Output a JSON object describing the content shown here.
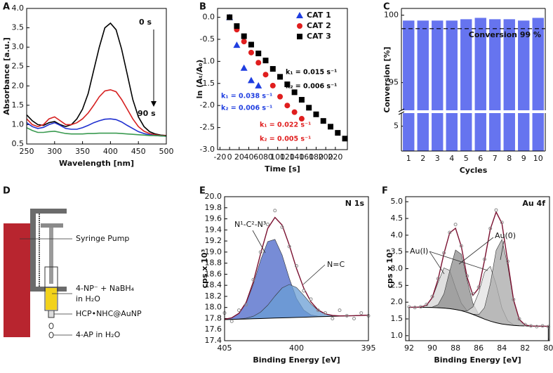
{
  "chart_data": [
    {
      "type": "line",
      "panel_label": "A",
      "xlabel": "Wavelength [nm]",
      "ylabel": "Absorbance [a.u.]",
      "x": [
        250,
        260,
        270,
        280,
        290,
        300,
        310,
        320,
        330,
        340,
        350,
        360,
        370,
        380,
        390,
        400,
        410,
        420,
        430,
        440,
        450,
        460,
        470,
        480,
        490,
        500
      ],
      "xlim": [
        250,
        500
      ],
      "xticks": [
        250,
        300,
        350,
        400,
        450,
        500
      ],
      "ylim": [
        0.5,
        4.0
      ],
      "yticks": [
        0.5,
        {
          "value": 1,
          "label": "1.0"
        },
        1.5,
        {
          "value": 2,
          "label": "2.0"
        },
        2.5,
        {
          "value": 3,
          "label": "3.0"
        },
        3.5,
        {
          "value": 4,
          "label": "4.0"
        }
      ],
      "annotations": [
        "0 s",
        "90 s"
      ],
      "series": [
        {
          "color": "#000000",
          "values": [
            1.25,
            1.1,
            1.0,
            0.98,
            1.05,
            1.08,
            1.0,
            0.95,
            1.0,
            1.15,
            1.4,
            1.8,
            2.4,
            3.0,
            3.5,
            3.62,
            3.45,
            2.95,
            2.3,
            1.65,
            1.2,
            0.95,
            0.82,
            0.76,
            0.73,
            0.72
          ]
        },
        {
          "color": "#d62020",
          "values": [
            1.15,
            1.0,
            0.95,
            1.0,
            1.15,
            1.2,
            1.1,
            1.0,
            1.0,
            1.05,
            1.15,
            1.3,
            1.5,
            1.72,
            1.87,
            1.9,
            1.85,
            1.65,
            1.4,
            1.15,
            0.95,
            0.83,
            0.77,
            0.74,
            0.72,
            0.71
          ]
        },
        {
          "color": "#2030d0",
          "values": [
            1.05,
            0.95,
            0.9,
            0.93,
            1.0,
            1.05,
            0.98,
            0.9,
            0.88,
            0.88,
            0.92,
            0.98,
            1.05,
            1.1,
            1.14,
            1.15,
            1.13,
            1.07,
            0.98,
            0.9,
            0.82,
            0.77,
            0.74,
            0.72,
            0.71,
            0.7
          ]
        },
        {
          "color": "#3a9a50",
          "values": [
            0.92,
            0.85,
            0.8,
            0.8,
            0.82,
            0.83,
            0.8,
            0.77,
            0.76,
            0.76,
            0.76,
            0.77,
            0.77,
            0.78,
            0.78,
            0.78,
            0.78,
            0.77,
            0.76,
            0.75,
            0.74,
            0.73,
            0.72,
            0.72,
            0.71,
            0.7
          ]
        }
      ]
    },
    {
      "type": "scatter",
      "panel_label": "B",
      "xlabel": "Time [s]",
      "ylabel": "ln (Aₜ/A₀)",
      "xlim": [
        -25,
        245
      ],
      "xticks": [
        -20,
        0,
        20,
        40,
        60,
        80,
        100,
        120,
        140,
        160,
        180,
        200,
        220
      ],
      "ylim": [
        -3.0,
        0.2
      ],
      "yticks": [
        {
          "value": 0,
          "label": "0.0"
        },
        -0.5,
        {
          "value": -1,
          "label": "-1.0"
        },
        -1.5,
        {
          "value": -2,
          "label": "-2.0"
        },
        -2.5,
        {
          "value": -3,
          "label": "-3.0"
        }
      ],
      "legend": "upper right",
      "series": [
        {
          "name": "CAT 1",
          "color": "#1f3ee0",
          "marker": "triangle",
          "x": [
            0,
            15,
            30,
            45,
            60
          ],
          "values": [
            0,
            -0.63,
            -1.15,
            -1.43,
            -1.55
          ]
        },
        {
          "name": "CAT 2",
          "color": "#e01e1e",
          "marker": "circle",
          "x": [
            0,
            15,
            30,
            45,
            60,
            75,
            90,
            105,
            120,
            135,
            150
          ],
          "values": [
            0,
            -0.28,
            -0.55,
            -0.8,
            -1.03,
            -1.3,
            -1.55,
            -1.8,
            -2.0,
            -2.15,
            -2.3
          ]
        },
        {
          "name": "CAT 3",
          "color": "#000000",
          "marker": "square",
          "x": [
            0,
            15,
            30,
            45,
            60,
            75,
            90,
            105,
            120,
            135,
            150,
            165,
            180,
            195,
            210,
            225,
            240
          ],
          "values": [
            0,
            -0.2,
            -0.43,
            -0.62,
            -0.82,
            -0.98,
            -1.17,
            -1.35,
            -1.52,
            -1.7,
            -1.87,
            -2.05,
            -2.2,
            -2.35,
            -2.48,
            -2.62,
            -2.75
          ]
        }
      ],
      "annotations": [
        {
          "text": "k₁ = 0.015 s⁻¹",
          "color": "#000000"
        },
        {
          "text": "k₂ = 0.006 s⁻¹",
          "color": "#000000"
        },
        {
          "text": "k₁ = 0.038 s⁻¹",
          "color": "#1f3ee0"
        },
        {
          "text": "k₂ = 0.006 s⁻¹",
          "color": "#1f3ee0"
        },
        {
          "text": "k₁ = 0.022 s⁻¹",
          "color": "#e01e1e"
        },
        {
          "text": "k₂ = 0.005 s⁻¹",
          "color": "#e01e1e"
        }
      ]
    },
    {
      "type": "bar",
      "panel_label": "C",
      "xlabel": "Cycles",
      "ylabel": "Conversion [%]",
      "categories": [
        "1",
        "2",
        "3",
        "4",
        "5",
        "6",
        "7",
        "8",
        "9",
        "10"
      ],
      "values": [
        99.6,
        99.6,
        99.6,
        99.6,
        99.7,
        99.8,
        99.7,
        99.7,
        99.6,
        99.8
      ],
      "color": "#6674ef",
      "ylim": [
        0,
        100.5
      ],
      "axis_break": [
        7.5,
        93
      ],
      "yticks": [
        5,
        95,
        100
      ],
      "reference": {
        "value": 99,
        "label": "Conversion 99 %"
      }
    },
    {
      "type": "area",
      "panel_label": "E",
      "title": "N 1s",
      "xlabel": "Binding Energy [eV]",
      "ylabel": "cps x 10³",
      "x": [
        405,
        404.5,
        404,
        403.5,
        403,
        402.5,
        402,
        401.5,
        401,
        400.5,
        400,
        399.5,
        399,
        398.5,
        398,
        397.5,
        397,
        396.5,
        396,
        395.5,
        395
      ],
      "xlim": [
        405,
        395
      ],
      "xticks": [
        405,
        400,
        395
      ],
      "ylim": [
        17.4,
        20.0
      ],
      "yticks": [
        17.4,
        17.6,
        17.8,
        {
          "value": 18,
          "label": "18.0"
        },
        18.2,
        18.4,
        18.6,
        18.8,
        {
          "value": 19,
          "label": "19.0"
        },
        19.2,
        19.4,
        19.6,
        19.8,
        {
          "value": 20,
          "label": "20.0"
        }
      ],
      "series": [
        {
          "name": "N¹-C²-N³",
          "style": "fill",
          "color": "#4a66c8",
          "values": [
            17.786,
            17.813,
            17.891,
            18.079,
            18.419,
            18.853,
            19.19,
            19.229,
            18.947,
            18.522,
            18.162,
            17.953,
            17.866,
            17.841,
            17.838,
            17.84,
            17.844,
            17.848,
            17.852,
            17.856,
            17.86
          ]
        },
        {
          "name": "N=C",
          "style": "fill",
          "color": "#6a9ed4",
          "values": [
            17.78,
            17.785,
            17.792,
            17.807,
            17.841,
            17.915,
            18.041,
            18.205,
            18.353,
            18.416,
            18.361,
            18.221,
            18.065,
            17.947,
            17.881,
            17.855,
            17.848,
            17.849,
            17.852,
            17.856,
            17.86
          ]
        },
        {
          "style": "base",
          "color": "#000000",
          "values": [
            17.78,
            17.784,
            17.788,
            17.792,
            17.796,
            17.8,
            17.804,
            17.808,
            17.812,
            17.816,
            17.82,
            17.824,
            17.828,
            17.832,
            17.836,
            17.84,
            17.844,
            17.848,
            17.852,
            17.856,
            17.86
          ]
        },
        {
          "style": "line",
          "color": "#7a1030",
          "values": [
            17.786,
            17.814,
            17.895,
            18.094,
            18.464,
            18.968,
            19.427,
            19.626,
            19.488,
            19.122,
            18.703,
            18.35,
            18.103,
            17.956,
            17.883,
            17.855,
            17.848,
            17.849,
            17.852,
            17.856,
            17.86
          ]
        },
        {
          "style": "points",
          "color": "#8a8a8a",
          "values": [
            17.9,
            17.75,
            17.95,
            18.05,
            18.5,
            19.0,
            19.5,
            19.75,
            19.45,
            19.1,
            18.75,
            18.3,
            18.15,
            17.95,
            17.9,
            17.8,
            17.95,
            17.85,
            17.8,
            17.9,
            17.85
          ]
        }
      ]
    },
    {
      "type": "area",
      "panel_label": "F",
      "title": "Au 4f",
      "xlabel": "Binding Energy [eV]",
      "ylabel": "cps x 10³",
      "x": [
        92,
        91.5,
        91,
        90.5,
        90,
        89.5,
        89,
        88.5,
        88,
        87.5,
        87,
        86.5,
        86,
        85.5,
        85,
        84.5,
        84,
        83.5,
        83,
        82.5,
        82,
        81.5,
        81,
        80.5,
        80
      ],
      "xlim": [
        92.3,
        79.9
      ],
      "xticks": [
        92,
        90,
        88,
        86,
        84,
        82,
        80
      ],
      "ylim": [
        0.85,
        5.15
      ],
      "yticks": [
        {
          "value": 1,
          "label": "1.0"
        },
        1.5,
        {
          "value": 2,
          "label": "2.0"
        },
        2.5,
        {
          "value": 3,
          "label": "3.0"
        },
        3.5,
        {
          "value": 4,
          "label": "4.0"
        },
        4.5,
        {
          "value": 5,
          "label": "5.0"
        }
      ],
      "annotations": [
        "Au(I)",
        "Au(0)"
      ],
      "series": [
        {
          "style": "fill",
          "color": "#d4d4d4",
          "values": [
            1.849,
            1.848,
            1.855,
            1.909,
            2.128,
            2.592,
            3.023,
            2.947,
            2.432,
            1.969,
            1.743,
            1.641,
            1.565,
            1.495,
            1.433,
            1.384,
            1.348,
            1.323,
            1.307,
            1.297,
            1.29,
            1.286,
            1.284,
            1.282,
            1.281
          ]
        },
        {
          "style": "fill",
          "color": "#8c8c8c",
          "values": [
            1.849,
            1.848,
            1.846,
            1.844,
            1.853,
            1.929,
            2.249,
            2.93,
            3.558,
            3.433,
            2.659,
            1.964,
            1.633,
            1.503,
            1.433,
            1.384,
            1.348,
            1.323,
            1.307,
            1.297,
            1.29,
            1.286,
            1.284,
            1.282,
            1.281
          ]
        },
        {
          "style": "fill",
          "color": "#e2e2e2",
          "values": [
            1.849,
            1.848,
            1.846,
            1.844,
            1.84,
            1.833,
            1.823,
            1.807,
            1.782,
            1.751,
            1.738,
            1.858,
            2.286,
            2.896,
            3.067,
            2.527,
            1.828,
            1.443,
            1.325,
            1.297,
            1.29,
            1.286,
            1.284,
            1.282,
            1.281
          ]
        },
        {
          "style": "fill",
          "color": "#a8a8a8",
          "values": [
            1.849,
            1.848,
            1.846,
            1.844,
            1.84,
            1.833,
            1.823,
            1.807,
            1.782,
            1.746,
            1.697,
            1.643,
            1.629,
            1.839,
            2.547,
            3.549,
            3.873,
            3.09,
            2.049,
            1.483,
            1.318,
            1.288,
            1.284,
            1.282,
            1.281
          ]
        },
        {
          "style": "base",
          "color": "#000000",
          "values": [
            1.849,
            1.848,
            1.846,
            1.844,
            1.84,
            1.833,
            1.823,
            1.807,
            1.782,
            1.746,
            1.697,
            1.635,
            1.565,
            1.495,
            1.433,
            1.384,
            1.348,
            1.323,
            1.307,
            1.297,
            1.29,
            1.286,
            1.284,
            1.282,
            1.281
          ]
        },
        {
          "style": "line",
          "color": "#7a1030",
          "values": [
            1.849,
            1.848,
            1.855,
            1.909,
            2.141,
            2.688,
            3.449,
            4.07,
            4.208,
            3.661,
            2.746,
            2.201,
            2.418,
            3.248,
            4.181,
            4.692,
            4.353,
            3.21,
            2.067,
            1.483,
            1.318,
            1.288,
            1.284,
            1.282,
            1.281
          ]
        },
        {
          "style": "points",
          "color": "#8a8a8a",
          "values": [
            1.86,
            1.84,
            1.86,
            1.93,
            2.17,
            2.7,
            3.47,
            4.08,
            4.32,
            3.68,
            2.78,
            2.25,
            2.45,
            3.28,
            4.2,
            4.75,
            4.38,
            3.22,
            2.08,
            1.5,
            1.33,
            1.29,
            1.27,
            1.29,
            1.27
          ]
        }
      ]
    }
  ],
  "diagram": {
    "panel_label": "D",
    "labels": [
      "Syringe Pump",
      "4-NP⁻ + NaBH₄",
      "in H₂O",
      "HCP•NHC@AuNP",
      "4-AP in H₂O"
    ]
  }
}
